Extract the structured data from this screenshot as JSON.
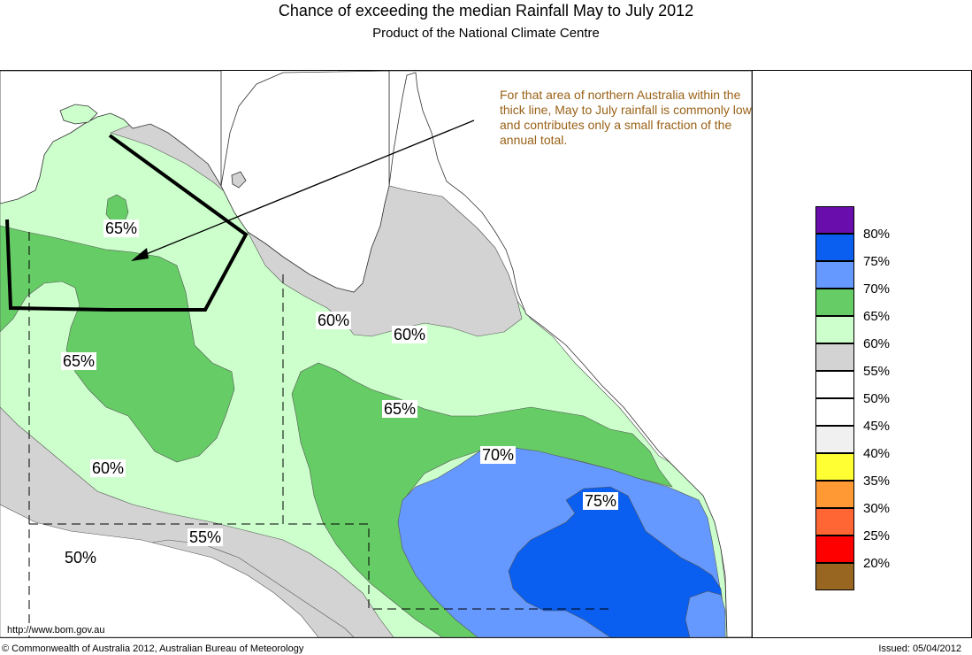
{
  "title": "Chance of exceeding the median Rainfall May to July 2012",
  "subtitle": "Product of the National Climate Centre",
  "note": "For that area of northern Australia within the thick line, May to July rainfall is commonly low and contributes only a small fraction of the annual total.",
  "url": "http://www.bom.gov.au",
  "copyright": "© Commonwealth of Australia 2012, Australian Bureau of Meteorology",
  "issued": "Issued: 05/04/2012",
  "legend": [
    {
      "label": "80%",
      "color": "#6a0dad"
    },
    {
      "label": "75%",
      "color": "#0a5ef0"
    },
    {
      "label": "70%",
      "color": "#6699ff"
    },
    {
      "label": "65%",
      "color": "#66cc66"
    },
    {
      "label": "60%",
      "color": "#ccffcc"
    },
    {
      "label": "55%",
      "color": "#d3d3d3"
    },
    {
      "label": "50%",
      "color": "#ffffff"
    },
    {
      "label": "45%",
      "color": "#ffffff"
    },
    {
      "label": "40%",
      "color": "#f0f0f0"
    },
    {
      "label": "35%",
      "color": "#ffff33"
    },
    {
      "label": "30%",
      "color": "#ff9933"
    },
    {
      "label": "25%",
      "color": "#ff6633"
    },
    {
      "label": "20%",
      "color": "#ff0000"
    },
    {
      "label": "",
      "color": "#996622"
    }
  ],
  "contour_labels": {
    "l1": "65%",
    "l2": "65%",
    "l3": "60%",
    "l4": "60%",
    "l5": "60%",
    "l6": "65%",
    "l7": "70%",
    "l8": "75%",
    "l9": "55%",
    "l10": "50%"
  }
}
